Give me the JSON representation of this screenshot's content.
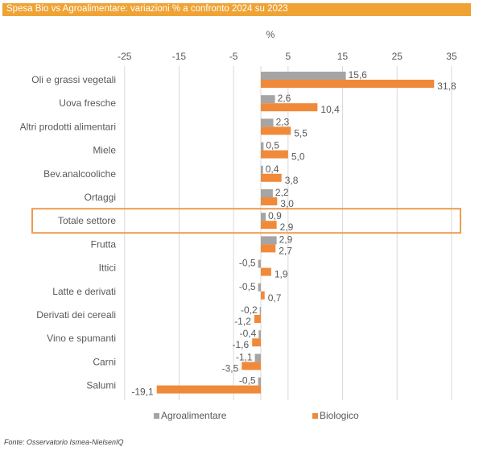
{
  "header": {
    "title": "Spesa Bio vs Agroalimentare: variazioni % a confronto 2024 su 2023"
  },
  "colors": {
    "header_bg": "#EFA334",
    "agro": "#A5A5A5",
    "bio": "#F08A3A",
    "highlight": "#EE9B4E",
    "grid": "#D9D9D9"
  },
  "chart_data": {
    "type": "bar",
    "orientation": "horizontal",
    "title": "Spesa Bio vs Agroalimentare: variazioni % a confronto 2024 su 2023",
    "unit_label": "%",
    "xlim": [
      -25,
      35
    ],
    "ticks": [
      -25,
      -15,
      -5,
      5,
      15,
      25,
      35
    ],
    "tick_labels": [
      "-25",
      "-15",
      "-5",
      "5",
      "15",
      "25",
      "35"
    ],
    "grid": true,
    "legend_position": "bottom",
    "categories": [
      "Oli e grassi vegetali",
      "Uova fresche",
      "Altri prodotti alimentari",
      "Miele",
      "Bev.analcooliche",
      "Ortaggi",
      "Totale settore",
      "Frutta",
      "Ittici",
      "Latte e derivati",
      "Derivati dei cereali",
      "Vino e spumanti",
      "Carni",
      "Salumi"
    ],
    "highlighted_category": "Totale settore",
    "series": [
      {
        "name": "Agroalimentare",
        "values": [
          15.6,
          2.6,
          2.3,
          0.5,
          0.4,
          2.2,
          0.9,
          2.9,
          -0.5,
          -0.5,
          -0.2,
          -0.4,
          -1.1,
          -0.5
        ],
        "labels": [
          "15,6",
          "2,6",
          "2,3",
          "0,5",
          "0,4",
          "2,2",
          "0,9",
          "2,9",
          "-0,5",
          "-0,5",
          "-0,2",
          "-0,4",
          "-1,1",
          "-0,5"
        ]
      },
      {
        "name": "Biologico",
        "values": [
          31.8,
          10.4,
          5.5,
          5.0,
          3.8,
          3.0,
          2.9,
          2.7,
          1.9,
          0.7,
          -1.2,
          -1.6,
          -3.5,
          -19.1
        ],
        "labels": [
          "31,8",
          "10,4",
          "5,5",
          "5,0",
          "3,8",
          "3,0",
          "2,9",
          "2,7",
          "1,9",
          "0,7",
          "-1,2",
          "-1,6",
          "-3,5",
          "-19,1"
        ]
      }
    ]
  },
  "footer": {
    "source": "Fonte: Osservatorio Ismea-NielsenIQ"
  }
}
